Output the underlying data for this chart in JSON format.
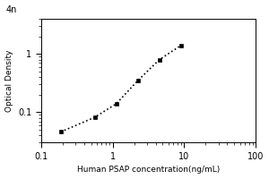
{
  "title": "",
  "xlabel": "Human PSAP concentration(ng/mL)",
  "ylabel": "Optical Density",
  "x_data_points": [
    0.188,
    0.563,
    1.125,
    2.25,
    4.5,
    9.0
  ],
  "y_data_points": [
    0.046,
    0.082,
    0.14,
    0.35,
    0.8,
    1.4
  ],
  "xlim": [
    0.1,
    100
  ],
  "ylim": [
    0.03,
    4
  ],
  "x_ticks": [
    0.1,
    1,
    10,
    100
  ],
  "x_tick_labels": [
    "0.1",
    "1",
    "10",
    "100"
  ],
  "y_ticks": [
    0.1,
    1
  ],
  "y_tick_labels": [
    "0.1",
    "1"
  ],
  "top_y_label": "4n",
  "marker": "s",
  "marker_color": "black",
  "marker_size": 3.5,
  "line_style": ":",
  "line_color": "black",
  "line_width": 1.2,
  "background_color": "#ffffff",
  "xlabel_fontsize": 6.5,
  "ylabel_fontsize": 6.5,
  "tick_fontsize": 7
}
